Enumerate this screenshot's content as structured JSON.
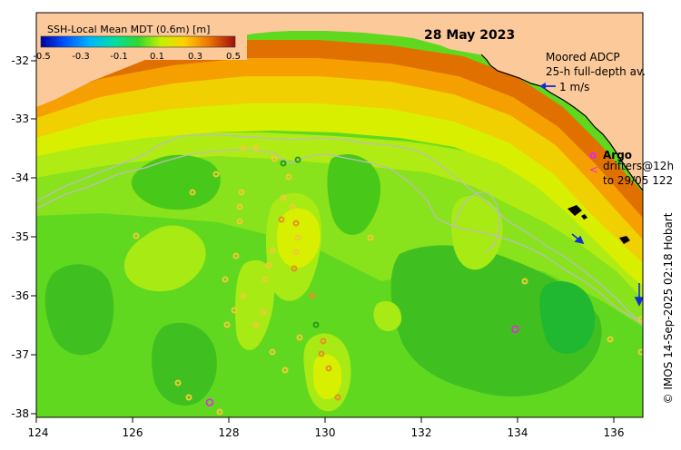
{
  "map": {
    "title": "28 May 2023",
    "colorbar": {
      "label": "SSH-Local Mean MDT (0.6m) [m]",
      "ticks": [
        "-0.5",
        "-0.3",
        "-0.1",
        "0.1",
        "0.3",
        "0.5"
      ],
      "range": [
        -0.5,
        0.5
      ]
    },
    "x_ticks": [
      "124",
      "126",
      "128",
      "130",
      "132",
      "134",
      "136"
    ],
    "y_ticks": [
      "-32",
      "-33",
      "-34",
      "-35",
      "-36",
      "-37",
      "-38"
    ],
    "lon_range": [
      124,
      136.6
    ],
    "lat_range": [
      -38.1,
      -31.3
    ],
    "legend": {
      "adcp_line1": "Moored ADCP",
      "adcp_line2": "25-h full-depth av.",
      "adcp_scale": "1 m/s",
      "argo_symbol": "o",
      "argo_label": "Argo",
      "drifter_symbol": "<",
      "drifter_line1": "drifters@12h",
      "drifter_line2": "to 29/05 122"
    },
    "credit": "© IMOS 14-Sep-2025 02:18 Hobart",
    "colors": {
      "land": "#fcc99a",
      "contour": "#bcbcbc",
      "argo": "#ee22ee",
      "adcp_arrow": "#1030d0",
      "ring": "#eecc33"
    },
    "argo_floats": [
      {
        "lon": 133.95,
        "lat": -36.62
      },
      {
        "lon": 127.6,
        "lat": -37.85
      }
    ]
  }
}
